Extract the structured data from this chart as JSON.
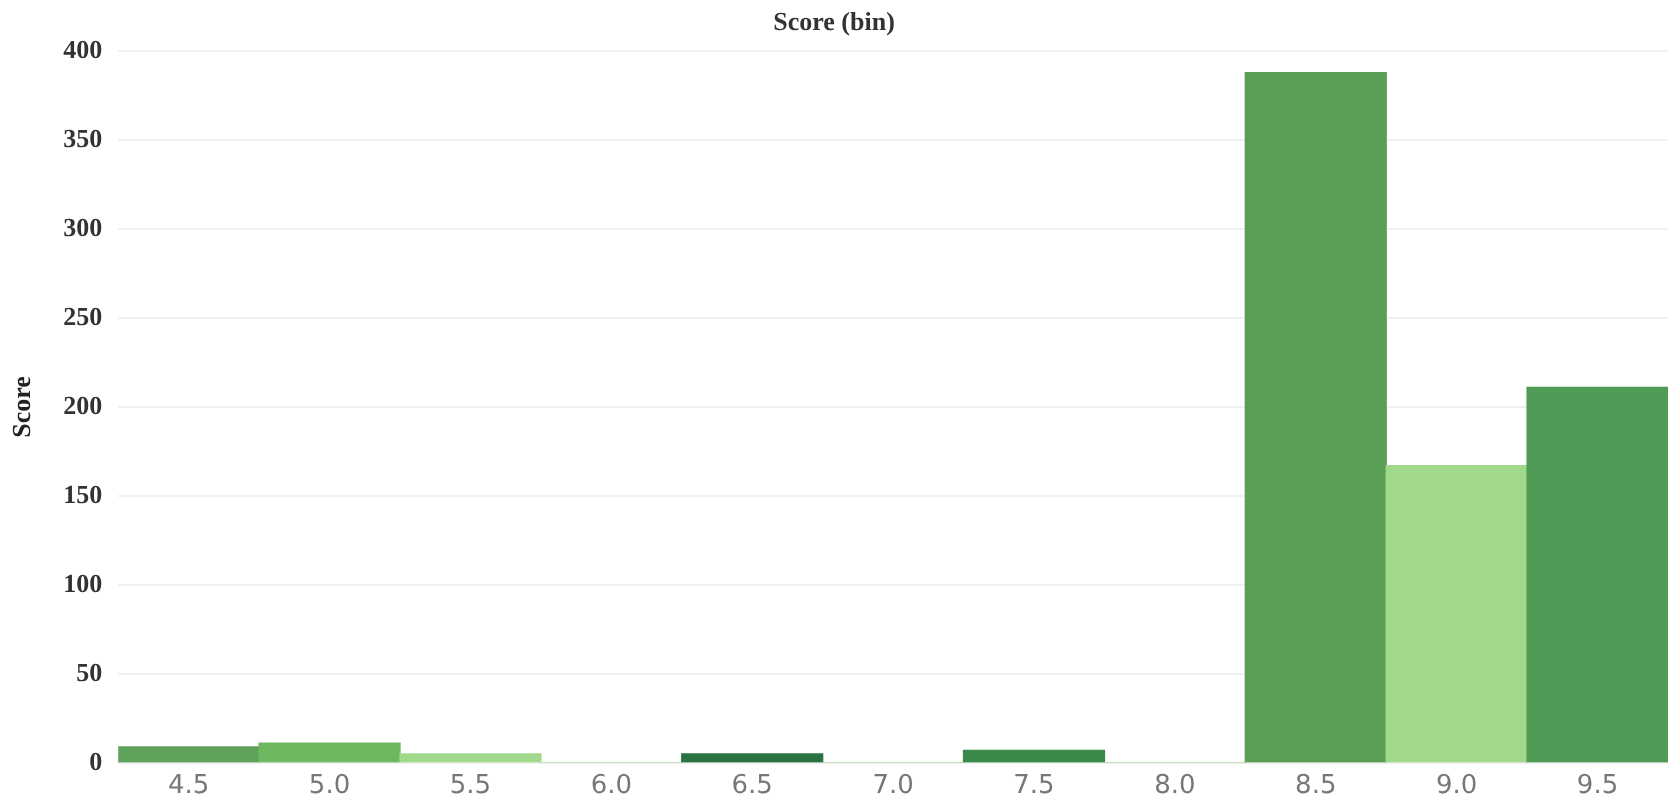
{
  "chart_data": {
    "type": "bar",
    "title": "Score (bin)",
    "ylabel": "Score",
    "categories": [
      "4.5",
      "5.0",
      "5.5",
      "6.0",
      "6.5",
      "7.0",
      "7.5",
      "8.0",
      "8.5",
      "9.0",
      "9.5"
    ],
    "values": [
      9,
      11,
      5,
      0,
      5,
      0,
      7,
      0,
      388,
      167,
      211
    ],
    "colors": [
      "#5fa25a",
      "#6fb862",
      "#a0d88c",
      "#a0d88c",
      "#2a7340",
      "#a0d88c",
      "#3a8a4a",
      "#a0d88c",
      "#5a9f55",
      "#a0d88c",
      "#4f9a55"
    ],
    "ylim": [
      0,
      400
    ],
    "yticks": [
      0,
      50,
      100,
      150,
      200,
      250,
      300,
      350,
      400
    ],
    "grid": "y",
    "legend": false
  }
}
